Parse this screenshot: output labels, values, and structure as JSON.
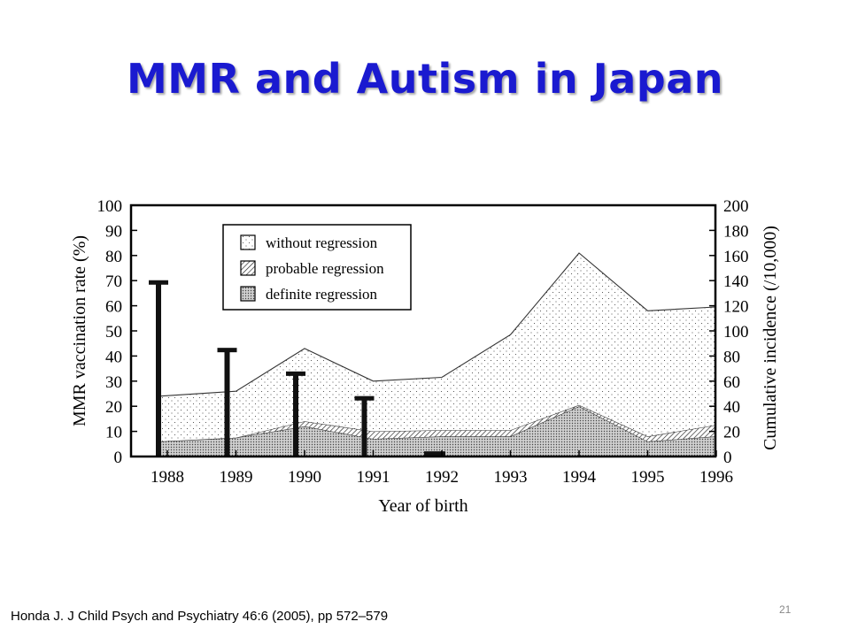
{
  "slide": {
    "title": "MMR and Autism in Japan",
    "citation": "Honda J. J Child Psych and Psychiatry 46:6 (2005), pp 572–579",
    "number": "21"
  },
  "chart_data": {
    "type": "area",
    "xlabel": "Year of birth",
    "ylabel_left": "MMR vaccination rate (%)",
    "ylabel_right": "Cumulative incidence (/10,000)",
    "x": [
      1988,
      1989,
      1990,
      1991,
      1992,
      1993,
      1994,
      1995,
      1996
    ],
    "x_ticks": [
      "1988",
      "1989",
      "1990",
      "1991",
      "1992",
      "1993",
      "1994",
      "1995",
      "1996"
    ],
    "ylim_left": [
      0,
      100
    ],
    "yticks_left": [
      "0",
      "10",
      "20",
      "30",
      "40",
      "50",
      "60",
      "70",
      "80",
      "90",
      "100"
    ],
    "ylim_right": [
      0,
      200
    ],
    "yticks_right": [
      "0",
      "20",
      "40",
      "60",
      "80",
      "100",
      "120",
      "140",
      "160",
      "180",
      "200"
    ],
    "bars": {
      "axis": "left",
      "x": [
        1988,
        1989,
        1990,
        1991,
        1992
      ],
      "values": [
        69.8,
        42.9,
        33.5,
        23.7,
        1.0
      ]
    },
    "series": [
      {
        "name": "definite regression",
        "axis": "right",
        "pattern": "dense-dots",
        "values": [
          12,
          15,
          24,
          14,
          16,
          16,
          40,
          12,
          16
        ]
      },
      {
        "name": "probable regression",
        "axis": "right",
        "pattern": "hatch",
        "values": [
          0,
          0,
          4,
          6,
          5,
          5,
          1,
          4,
          9
        ]
      },
      {
        "name": "without regression",
        "axis": "right",
        "pattern": "sparse-dots",
        "values": [
          36,
          37,
          58,
          40,
          42,
          76,
          121,
          100,
          94
        ]
      }
    ],
    "legend": {
      "placement": "top-left",
      "entries": [
        "without regression",
        "probable regression",
        "definite regression"
      ]
    },
    "grid": false
  }
}
